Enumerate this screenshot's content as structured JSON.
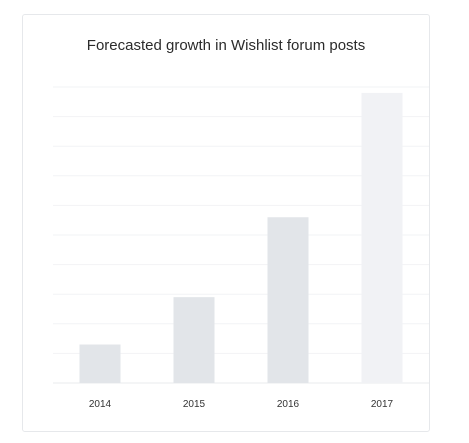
{
  "chart_data": {
    "type": "bar",
    "title": "Forecasted growth in Wishlist forum posts",
    "xlabel": "",
    "ylabel": "",
    "categories": [
      "2014",
      "2015",
      "2016",
      "2017"
    ],
    "values": [
      13,
      29,
      56,
      98
    ],
    "ylim": [
      0,
      100
    ],
    "grid": true,
    "gridlines": 10,
    "colors": {
      "bar": "#e2e5e9",
      "bar_forecast": "#f1f2f5",
      "grid": "#f2f3f5",
      "axis": "#e9ebee"
    },
    "forecast_categories": [
      "2017"
    ]
  }
}
